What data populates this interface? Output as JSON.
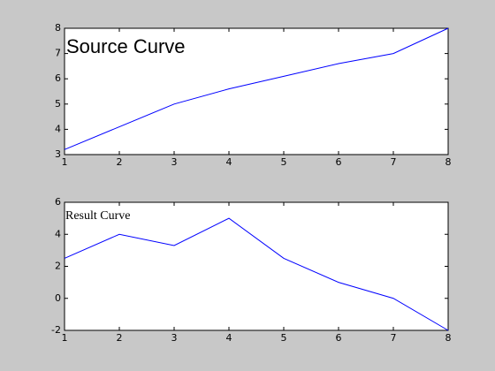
{
  "chart_data": [
    {
      "type": "line",
      "annotation": "Source Curve",
      "x": [
        1,
        2,
        3,
        4,
        5,
        6,
        7,
        8
      ],
      "series": [
        {
          "color": "#0000ff",
          "values": [
            3.2,
            4.1,
            5.0,
            5.6,
            6.1,
            6.6,
            7.0,
            8.0
          ]
        }
      ],
      "xlim": [
        1,
        8
      ],
      "ylim": [
        3,
        8
      ],
      "xticks": [
        1,
        2,
        3,
        4,
        5,
        6,
        7,
        8
      ],
      "yticks": [
        3,
        4,
        5,
        6,
        7,
        8
      ]
    },
    {
      "type": "line",
      "annotation": "Result Curve",
      "x": [
        1,
        2,
        3,
        4,
        5,
        6,
        7,
        8
      ],
      "series": [
        {
          "color": "#0000ff",
          "values": [
            2.5,
            4.0,
            3.3,
            5.0,
            2.5,
            1.0,
            0,
            -2
          ]
        }
      ],
      "xlim": [
        1,
        8
      ],
      "ylim": [
        -2,
        6
      ],
      "xticks": [
        1,
        2,
        3,
        4,
        5,
        6,
        7,
        8
      ],
      "yticks": [
        -2,
        0,
        2,
        4,
        6
      ]
    }
  ]
}
